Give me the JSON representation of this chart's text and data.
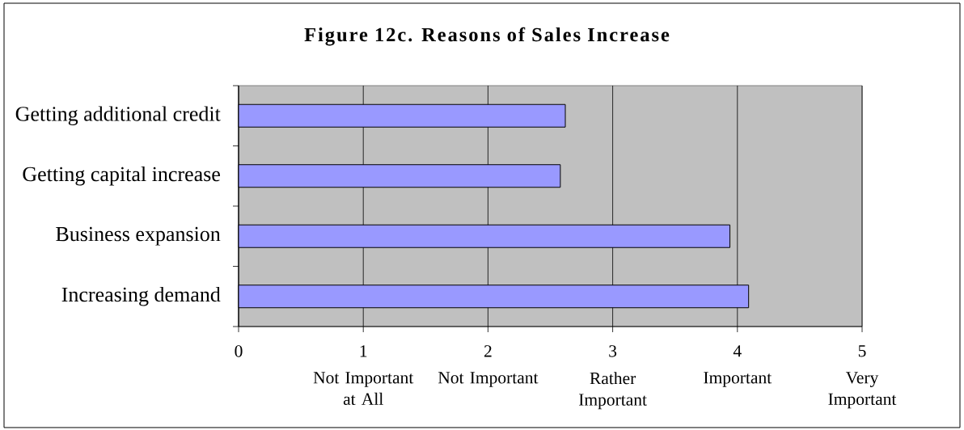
{
  "chart_data": {
    "type": "bar",
    "orientation": "horizontal",
    "title": "Figure 12c. Reasons of Sales Increase",
    "categories": [
      "Getting additional credit",
      "Getting capital increase",
      "Business expansion",
      "Increasing demand"
    ],
    "values": [
      2.62,
      2.58,
      3.94,
      4.09
    ],
    "color": "#9999ff",
    "xlim": [
      0,
      5
    ],
    "xticks": [
      0,
      1,
      2,
      3,
      4,
      5
    ],
    "grid": "x",
    "annotations": [
      "Not Important at All",
      "Not Important",
      "Rather Important",
      "Important",
      "Very Important"
    ]
  }
}
